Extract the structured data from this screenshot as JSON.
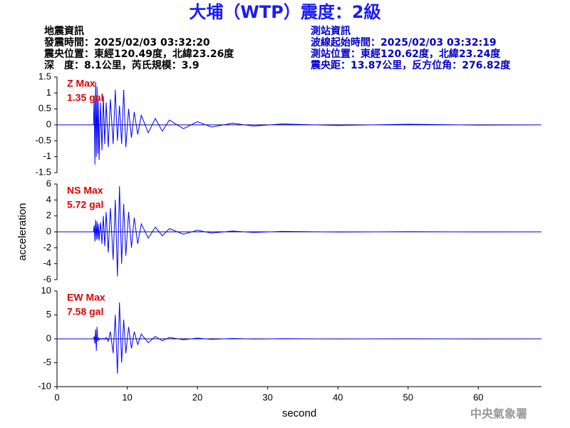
{
  "header": {
    "title": "大埔（WTP）震度：2級",
    "left": [
      "地震資訊",
      "發震時間：2025/02/03 03:32:20",
      "震央位置：東經120.49度，北緯23.26度",
      "深　度：8.1公里，芮氏規模：3.9"
    ],
    "right": [
      "測站資訊",
      "波線起始時間：2025/02/03 03:32:19",
      "測站位置：東經120.62度，北緯23.24度",
      "震央距：13.87公里，反方位角：276.82度"
    ],
    "footer": "中央氣象署"
  },
  "chart_data": [
    {
      "type": "line",
      "annotations": [
        "Z Max",
        "1.35 gal"
      ],
      "color": "#0000ff",
      "xlim": [
        0,
        69
      ],
      "ylim": [
        -1.5,
        1.5
      ],
      "yticks": [
        1.5,
        1,
        0.5,
        0,
        -0.5,
        -1,
        -1.5
      ],
      "x": [
        0,
        5.2,
        5.3,
        5.4,
        5.5,
        5.6,
        5.7,
        5.8,
        5.9,
        6.0,
        6.2,
        6.4,
        6.6,
        6.8,
        7.0,
        7.3,
        7.6,
        8.0,
        8.3,
        8.6,
        8.9,
        9.2,
        9.5,
        9.8,
        10.2,
        10.6,
        11,
        11.5,
        12,
        13,
        14,
        15,
        16,
        18,
        20,
        22,
        25,
        28,
        32,
        40,
        50,
        60,
        69
      ],
      "values": [
        0,
        0,
        0.9,
        -1.25,
        1.35,
        -1.0,
        1.2,
        -0.9,
        0.8,
        -1.1,
        0.7,
        -0.8,
        0.9,
        -0.6,
        0.7,
        -0.7,
        0.8,
        -0.6,
        1.1,
        -0.5,
        0.6,
        -0.6,
        1.1,
        -0.7,
        0.5,
        -0.4,
        0.4,
        -0.3,
        0.3,
        -0.25,
        0.2,
        -0.2,
        0.15,
        -0.12,
        0.1,
        -0.07,
        0.05,
        -0.04,
        0.03,
        -0.02,
        0.02,
        -0.01,
        0
      ]
    },
    {
      "type": "line",
      "annotations": [
        "NS Max",
        "5.72 gal"
      ],
      "ylabel": "acceleration",
      "color": "#0000ff",
      "xlim": [
        0,
        69
      ],
      "ylim": [
        -6,
        6
      ],
      "yticks": [
        6,
        4,
        2,
        0,
        -2,
        -4,
        -6
      ],
      "x": [
        0,
        5.2,
        5.3,
        5.4,
        5.5,
        5.6,
        5.7,
        5.8,
        5.9,
        6.0,
        6.2,
        6.4,
        6.6,
        6.8,
        7.0,
        7.3,
        7.6,
        8.0,
        8.3,
        8.6,
        8.9,
        9.2,
        9.5,
        9.8,
        10.2,
        10.6,
        11,
        11.5,
        12,
        13,
        14,
        15,
        16,
        18,
        20,
        22,
        25,
        28,
        32,
        40,
        50,
        60,
        69
      ],
      "values": [
        0,
        0,
        0.8,
        -1.2,
        1.5,
        -1.0,
        1.3,
        -0.9,
        1.0,
        -1.1,
        1.2,
        -1.5,
        2.0,
        -1.8,
        2.5,
        -2.6,
        3.0,
        -3.5,
        4.0,
        -5.6,
        5.72,
        -4.0,
        3.5,
        -3.0,
        2.5,
        -2.0,
        1.8,
        -1.5,
        1.0,
        -0.8,
        0.6,
        -0.5,
        0.4,
        -0.3,
        0.2,
        -0.15,
        0.1,
        -0.08,
        0.05,
        -0.03,
        0.02,
        -0.01,
        0
      ]
    },
    {
      "type": "line",
      "annotations": [
        "EW Max",
        "7.58 gal"
      ],
      "xlabel": "second",
      "color": "#0000ff",
      "xlim": [
        0,
        69
      ],
      "ylim": [
        -10,
        10
      ],
      "yticks": [
        10,
        5,
        0,
        -5,
        -10
      ],
      "xticks": [
        0,
        10,
        20,
        30,
        40,
        50,
        60
      ],
      "x": [
        0,
        5.2,
        5.3,
        5.4,
        5.5,
        5.6,
        5.7,
        5.8,
        5.9,
        6.0,
        6.2,
        6.4,
        6.6,
        6.8,
        7.0,
        7.3,
        7.6,
        8.0,
        8.3,
        8.6,
        8.9,
        9.2,
        9.5,
        9.8,
        10.2,
        10.6,
        11,
        11.5,
        12,
        13,
        14,
        15,
        16,
        18,
        20,
        22,
        25,
        28,
        32,
        40,
        50,
        60,
        69
      ],
      "values": [
        0,
        0,
        0.5,
        -1,
        2,
        -2.5,
        2.5,
        -0.5,
        0.3,
        -0.2,
        0.1,
        -0.1,
        0.1,
        -0.1,
        0.3,
        -0.5,
        1.5,
        -3.0,
        5.0,
        -7.3,
        7.58,
        -5.0,
        4.0,
        -3.0,
        2.5,
        -2.0,
        1.5,
        -1.2,
        1.0,
        -0.8,
        0.5,
        -0.4,
        0.3,
        -0.2,
        0.15,
        -0.1,
        0.08,
        -0.05,
        0.03,
        -0.02,
        0.02,
        -0.01,
        0
      ]
    }
  ]
}
